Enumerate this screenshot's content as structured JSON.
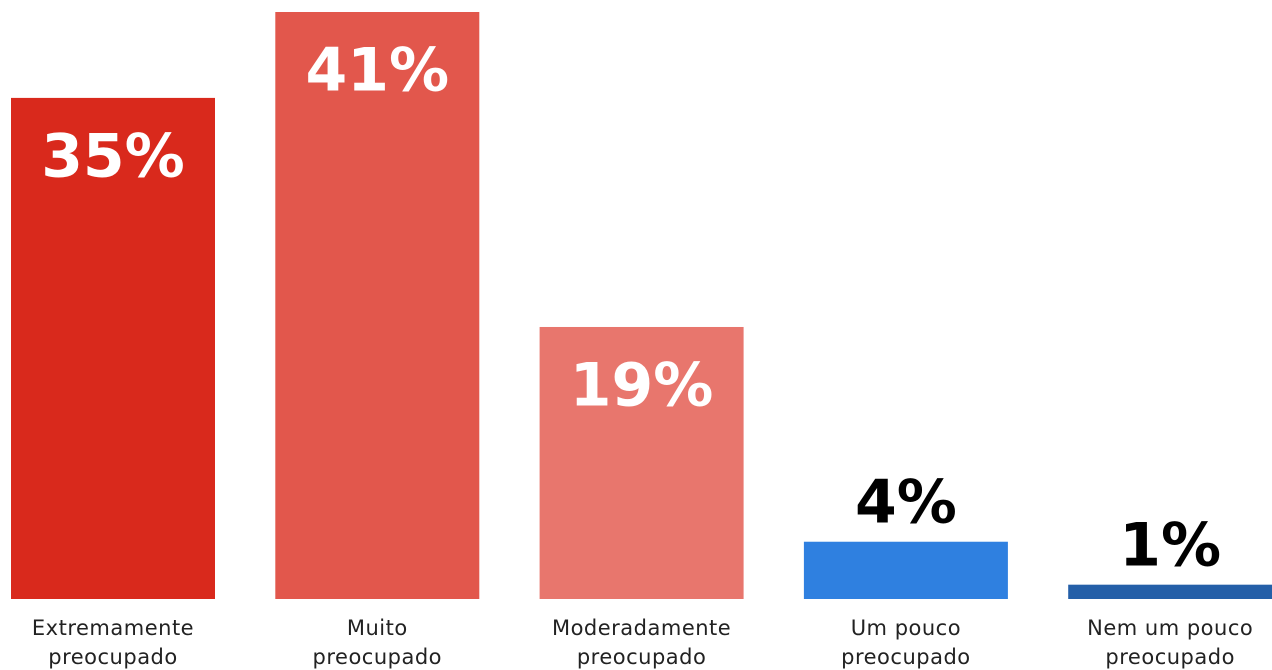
{
  "chart_data": {
    "type": "bar",
    "categories": [
      "Extremamente preocupado",
      "Muito preocupado",
      "Moderadamente preocupado",
      "Um pouco preocupado",
      "Nem um pouco preocupado"
    ],
    "values": [
      35,
      41,
      19,
      4,
      1
    ],
    "value_labels": [
      "35%",
      "41%",
      "19%",
      "4%",
      "1%"
    ],
    "colors": [
      "#d9291c",
      "#e2574c",
      "#e8766d",
      "#2f80e0",
      "#245fa8"
    ]
  }
}
